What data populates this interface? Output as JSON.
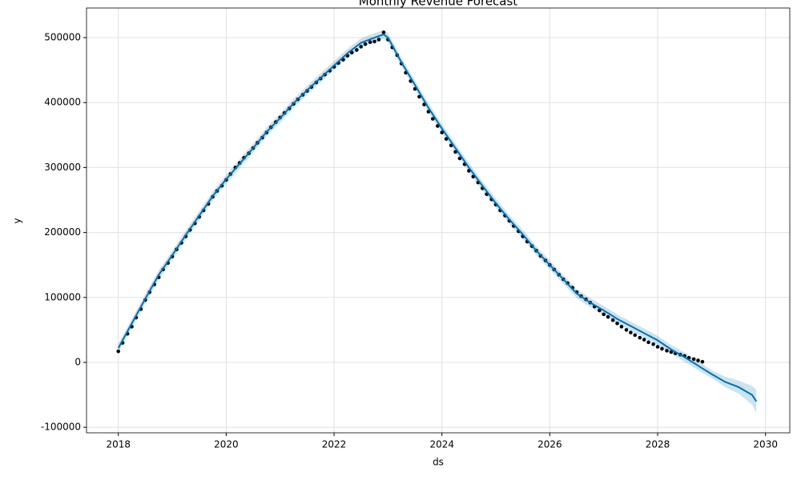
{
  "chart_data": {
    "type": "forecast",
    "title": "Monthly Revenue Forecast",
    "x_label": "ds",
    "y_label": "y",
    "grid": true,
    "xlim": [
      2017.41,
      2030.45
    ],
    "xticks": [
      2018,
      2020,
      2022,
      2024,
      2026,
      2028,
      2030
    ],
    "ylim": [
      -108400,
      545600
    ],
    "yticks": [
      -100000,
      0,
      100000,
      200000,
      300000,
      400000,
      500000
    ],
    "observed": {
      "color": "#000000",
      "x": [
        2018.0,
        2018.08,
        2018.17,
        2018.25,
        2018.33,
        2018.42,
        2018.5,
        2018.58,
        2018.67,
        2018.75,
        2018.83,
        2018.92,
        2019.0,
        2019.08,
        2019.17,
        2019.25,
        2019.33,
        2019.42,
        2019.5,
        2019.58,
        2019.67,
        2019.75,
        2019.83,
        2019.92,
        2020.0,
        2020.08,
        2020.17,
        2020.25,
        2020.33,
        2020.42,
        2020.5,
        2020.58,
        2020.67,
        2020.75,
        2020.83,
        2020.92,
        2021.0,
        2021.08,
        2021.17,
        2021.25,
        2021.33,
        2021.42,
        2021.5,
        2021.58,
        2021.67,
        2021.75,
        2021.83,
        2021.92,
        2022.0,
        2022.08,
        2022.17,
        2022.25,
        2022.33,
        2022.42,
        2022.5,
        2022.58,
        2022.67,
        2022.75,
        2022.83,
        2022.92,
        2023.0,
        2023.08,
        2023.17,
        2023.25,
        2023.33,
        2023.42,
        2023.5,
        2023.58,
        2023.67,
        2023.75,
        2023.83,
        2023.92,
        2024.0,
        2024.08,
        2024.17,
        2024.25,
        2024.33,
        2024.42,
        2024.5,
        2024.58,
        2024.67,
        2024.75,
        2024.83,
        2024.92,
        2025.0,
        2025.08,
        2025.17,
        2025.25,
        2025.33,
        2025.42,
        2025.5,
        2025.58,
        2025.67,
        2025.75,
        2025.83,
        2025.92,
        2026.0,
        2026.08,
        2026.17,
        2026.25,
        2026.33,
        2026.42,
        2026.5,
        2026.58,
        2026.67,
        2026.75,
        2026.83,
        2026.92,
        2027.0,
        2027.08,
        2027.17,
        2027.25,
        2027.33,
        2027.42,
        2027.5,
        2027.58,
        2027.67,
        2027.75,
        2027.83,
        2027.92,
        2028.0,
        2028.08,
        2028.17,
        2028.25,
        2028.33,
        2028.42,
        2028.5,
        2028.58,
        2028.67,
        2028.75,
        2028.83
      ],
      "values": [
        17000,
        30000,
        44000,
        55000,
        69000,
        82000,
        96000,
        108000,
        120000,
        131000,
        143000,
        153000,
        163000,
        174000,
        184000,
        194000,
        204000,
        214000,
        224000,
        234000,
        244000,
        255000,
        264000,
        272000,
        281000,
        290000,
        300000,
        307000,
        315000,
        322000,
        330000,
        338000,
        346000,
        354000,
        362000,
        370000,
        377000,
        384000,
        391000,
        398000,
        405000,
        412000,
        418000,
        424000,
        431000,
        437000,
        443000,
        449000,
        455000,
        461000,
        466000,
        472000,
        477000,
        481000,
        486000,
        490000,
        493000,
        494000,
        497000,
        508000,
        497000,
        485000,
        473000,
        460000,
        446000,
        433000,
        421000,
        409000,
        397000,
        386000,
        375000,
        364000,
        354000,
        344000,
        334000,
        324000,
        314000,
        305000,
        295000,
        286000,
        277000,
        268000,
        259000,
        251000,
        243000,
        234000,
        226000,
        218000,
        210000,
        202000,
        194000,
        186000,
        179000,
        172000,
        164000,
        157000,
        150000,
        143000,
        135000,
        128000,
        122000,
        115000,
        108000,
        102000,
        97000,
        92000,
        86000,
        80000,
        74000,
        70000,
        65000,
        60000,
        55000,
        50000,
        46000,
        42000,
        38000,
        35000,
        31000,
        28000,
        24000,
        21000,
        18000,
        16000,
        14000,
        12000,
        10000,
        7000,
        5000,
        3000,
        1000
      ]
    },
    "forecast": {
      "color": "#0072B2",
      "x": [
        2018.0,
        2018.25,
        2018.5,
        2018.75,
        2019.0,
        2019.25,
        2019.5,
        2019.75,
        2020.0,
        2020.25,
        2020.5,
        2020.75,
        2021.0,
        2021.25,
        2021.5,
        2021.75,
        2022.0,
        2022.25,
        2022.5,
        2022.75,
        2022.92,
        2023.0,
        2023.25,
        2023.5,
        2023.75,
        2024.0,
        2024.25,
        2024.5,
        2024.75,
        2025.0,
        2025.25,
        2025.5,
        2025.75,
        2026.0,
        2026.25,
        2026.5,
        2026.75,
        2027.0,
        2027.25,
        2027.5,
        2027.75,
        2028.0,
        2028.25,
        2028.5,
        2028.75,
        2029.0,
        2029.25,
        2029.5,
        2029.75,
        2029.83
      ],
      "values": [
        22000,
        60000,
        98000,
        135000,
        165000,
        196000,
        226000,
        256000,
        282000,
        306000,
        330000,
        355000,
        376000,
        399000,
        419000,
        438000,
        457000,
        476000,
        492000,
        500000,
        505000,
        500000,
        462000,
        427000,
        392000,
        360000,
        330000,
        300000,
        272000,
        245000,
        220000,
        197000,
        172000,
        150000,
        128000,
        106000,
        92000,
        80000,
        67000,
        56000,
        45000,
        34000,
        20000,
        8000,
        -5000,
        -18000,
        -30000,
        -38000,
        -50000,
        -60000
      ],
      "lower": [
        15000,
        53000,
        91000,
        128000,
        158000,
        189000,
        219000,
        249000,
        275000,
        299000,
        323000,
        348000,
        369000,
        392000,
        412000,
        431000,
        450000,
        469000,
        485000,
        493000,
        498000,
        493000,
        455000,
        420000,
        385000,
        353000,
        323000,
        293000,
        265000,
        238000,
        213000,
        190000,
        165000,
        143000,
        121000,
        99000,
        85000,
        73000,
        60000,
        49000,
        38000,
        27000,
        13000,
        1000,
        -12000,
        -24000,
        -38000,
        -48000,
        -65000,
        -78000
      ],
      "upper": [
        29000,
        67000,
        105000,
        142000,
        172000,
        203000,
        233000,
        263000,
        289000,
        313000,
        337000,
        362000,
        383000,
        406000,
        426000,
        445000,
        464000,
        483000,
        499000,
        507000,
        512000,
        507000,
        469000,
        434000,
        399000,
        367000,
        337000,
        307000,
        279000,
        252000,
        227000,
        204000,
        179000,
        157000,
        135000,
        113000,
        99000,
        87000,
        74000,
        63000,
        52000,
        41000,
        27000,
        15000,
        2000,
        -12000,
        -22000,
        -28000,
        -36000,
        -42000
      ]
    }
  }
}
